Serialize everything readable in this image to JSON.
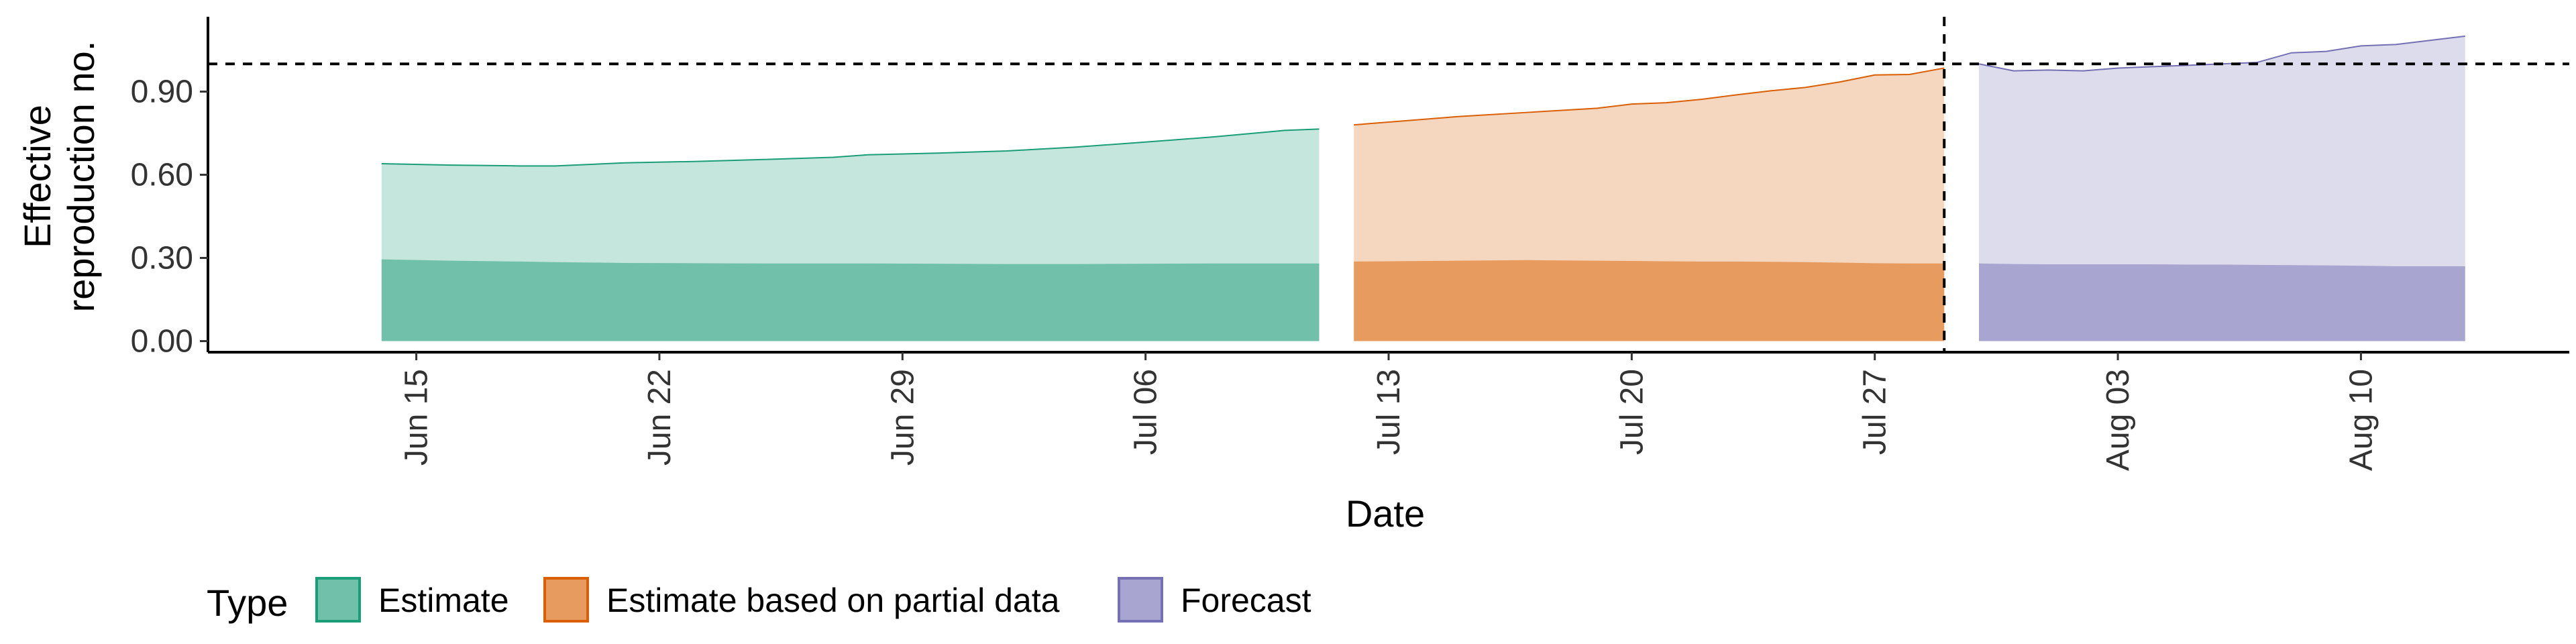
{
  "chart_data": {
    "type": "area",
    "title": "",
    "xlabel": "Date",
    "ylabel_lines": [
      "Effective",
      "reproduction no."
    ],
    "x_range": [
      "2020-06-09",
      "2020-08-16"
    ],
    "ylim": [
      -0.04,
      1.17
    ],
    "y_ticks": [
      0.0,
      0.3,
      0.6,
      0.9
    ],
    "y_tick_labels": [
      "0.00",
      "0.30",
      "0.60",
      "0.90"
    ],
    "x_ticks": [
      {
        "date": "2020-06-15",
        "label": "Jun 15"
      },
      {
        "date": "2020-06-22",
        "label": "Jun 22"
      },
      {
        "date": "2020-06-29",
        "label": "Jun 29"
      },
      {
        "date": "2020-07-06",
        "label": "Jul 06"
      },
      {
        "date": "2020-07-13",
        "label": "Jul 13"
      },
      {
        "date": "2020-07-20",
        "label": "Jul 20"
      },
      {
        "date": "2020-07-27",
        "label": "Jul 27"
      },
      {
        "date": "2020-08-03",
        "label": "Aug 03"
      },
      {
        "date": "2020-08-10",
        "label": "Aug 10"
      }
    ],
    "reference_lines": {
      "horizontal_y": 1.0,
      "vertical_x": "2020-07-29",
      "style": "dashed"
    },
    "grid": false,
    "legend": {
      "position": "bottom-left",
      "title": "Type",
      "entries": [
        "Estimate",
        "Estimate based on partial data",
        "Forecast"
      ]
    },
    "series": [
      {
        "name": "Estimate",
        "fill_outer": "#c5e6dc",
        "fill_inner": "#71c1aa",
        "line_color": "#1b9e77",
        "x": [
          "2020-06-14",
          "2020-06-16",
          "2020-06-18",
          "2020-06-19",
          "2020-06-21",
          "2020-06-23",
          "2020-06-25",
          "2020-06-27",
          "2020-06-28",
          "2020-06-30",
          "2020-07-02",
          "2020-07-04",
          "2020-07-06",
          "2020-07-08",
          "2020-07-10",
          "2020-07-11"
        ],
        "upper": [
          0.64,
          0.635,
          0.632,
          0.632,
          0.643,
          0.648,
          0.655,
          0.663,
          0.672,
          0.678,
          0.686,
          0.7,
          0.718,
          0.737,
          0.76,
          0.765
        ],
        "lower": [
          0.295,
          0.29,
          0.287,
          0.285,
          0.282,
          0.281,
          0.28,
          0.28,
          0.28,
          0.279,
          0.278,
          0.278,
          0.279,
          0.28,
          0.28,
          0.28
        ]
      },
      {
        "name": "Estimate based on partial data",
        "fill_outer": "#f5d6bf",
        "fill_inner": "#e89b5e",
        "line_color": "#d95f02",
        "x": [
          "2020-07-12",
          "2020-07-13",
          "2020-07-15",
          "2020-07-17",
          "2020-07-19",
          "2020-07-20",
          "2020-07-21",
          "2020-07-22",
          "2020-07-23",
          "2020-07-24",
          "2020-07-25",
          "2020-07-26",
          "2020-07-27",
          "2020-07-28",
          "2020-07-29"
        ],
        "upper": [
          0.78,
          0.79,
          0.81,
          0.825,
          0.84,
          0.855,
          0.86,
          0.872,
          0.888,
          0.903,
          0.915,
          0.935,
          0.96,
          0.962,
          0.985
        ],
        "lower": [
          0.287,
          0.288,
          0.29,
          0.292,
          0.29,
          0.289,
          0.288,
          0.287,
          0.287,
          0.286,
          0.285,
          0.283,
          0.281,
          0.28,
          0.28
        ]
      },
      {
        "name": "Forecast",
        "fill_outer": "#dcdcec",
        "fill_inner": "#a8a5d0",
        "line_color": "#7570b3",
        "x": [
          "2020-07-30",
          "2020-07-31",
          "2020-08-01",
          "2020-08-02",
          "2020-08-03",
          "2020-08-04",
          "2020-08-05",
          "2020-08-06",
          "2020-08-07",
          "2020-08-08",
          "2020-08-09",
          "2020-08-10",
          "2020-08-11",
          "2020-08-12",
          "2020-08-13"
        ],
        "upper": [
          1.0,
          0.975,
          0.978,
          0.975,
          0.985,
          0.99,
          0.995,
          1.0,
          1.005,
          1.04,
          1.045,
          1.065,
          1.07,
          1.085,
          1.1
        ],
        "lower": [
          0.28,
          0.278,
          0.277,
          0.277,
          0.277,
          0.277,
          0.276,
          0.276,
          0.275,
          0.274,
          0.273,
          0.272,
          0.27,
          0.27,
          0.27
        ]
      }
    ]
  }
}
